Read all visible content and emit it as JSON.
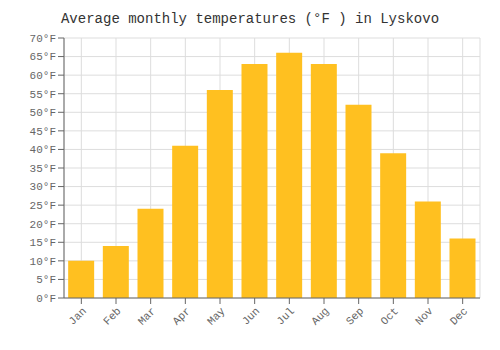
{
  "chart_data": {
    "type": "bar",
    "title": "Average monthly temperatures (°F ) in Lyskovo",
    "categories": [
      "Jan",
      "Feb",
      "Mar",
      "Apr",
      "May",
      "Jun",
      "Jul",
      "Aug",
      "Sep",
      "Oct",
      "Nov",
      "Dec"
    ],
    "values": [
      10,
      14,
      24,
      41,
      56,
      63,
      66,
      63,
      52,
      39,
      26,
      16
    ],
    "color": "#FFC020",
    "ylim": [
      0,
      70
    ],
    "yticks": [
      {
        "value": 0,
        "label": "0°F"
      },
      {
        "value": 5,
        "label": "5°F"
      },
      {
        "value": 10,
        "label": "10°F"
      },
      {
        "value": 15,
        "label": "15°F"
      },
      {
        "value": 20,
        "label": "20°F"
      },
      {
        "value": 25,
        "label": "25°F"
      },
      {
        "value": 30,
        "label": "30°F"
      },
      {
        "value": 35,
        "label": "35°F"
      },
      {
        "value": 40,
        "label": "40°F"
      },
      {
        "value": 45,
        "label": "45°F"
      },
      {
        "value": 50,
        "label": "50°F"
      },
      {
        "value": 55,
        "label": "55°F"
      },
      {
        "value": 60,
        "label": "60°F"
      },
      {
        "value": 65,
        "label": "65°F"
      },
      {
        "value": 70,
        "label": "70°F"
      }
    ],
    "grid": true
  }
}
